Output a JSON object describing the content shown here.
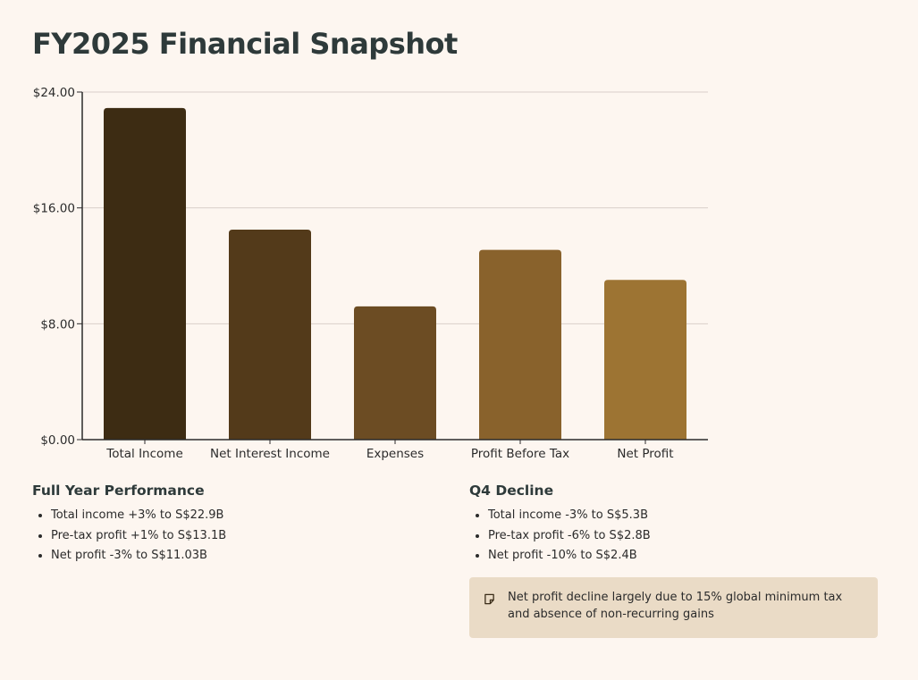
{
  "title": "FY2025 Financial Snapshot",
  "chart_data": {
    "type": "bar",
    "categories": [
      "Total Income",
      "Net Interest Income",
      "Expenses",
      "Profit Before Tax",
      "Net Profit"
    ],
    "values": [
      22.9,
      14.5,
      9.2,
      13.1,
      11.03
    ],
    "colors": [
      "#3d2c13",
      "#533a1a",
      "#6c4c23",
      "#89622c",
      "#9d7433"
    ],
    "yticks": [
      "$0.00",
      "$8.00",
      "$16.00",
      "$24.00"
    ],
    "ylim": [
      0,
      24
    ],
    "grid": true,
    "xlabel": "",
    "ylabel": ""
  },
  "left": {
    "heading": "Full Year Performance",
    "items": [
      "Total income +3% to S$22.9B",
      "Pre-tax profit +1% to S$13.1B",
      "Net profit -3% to S$11.03B"
    ]
  },
  "right": {
    "heading": "Q4 Decline",
    "items": [
      "Total income -3% to S$5.3B",
      "Pre-tax profit -6% to S$2.8B",
      "Net profit -10% to S$2.4B"
    ]
  },
  "callout": {
    "icon": "note-icon",
    "text": "Net profit decline largely due to 15% global minimum tax and absence of non-recurring gains"
  }
}
